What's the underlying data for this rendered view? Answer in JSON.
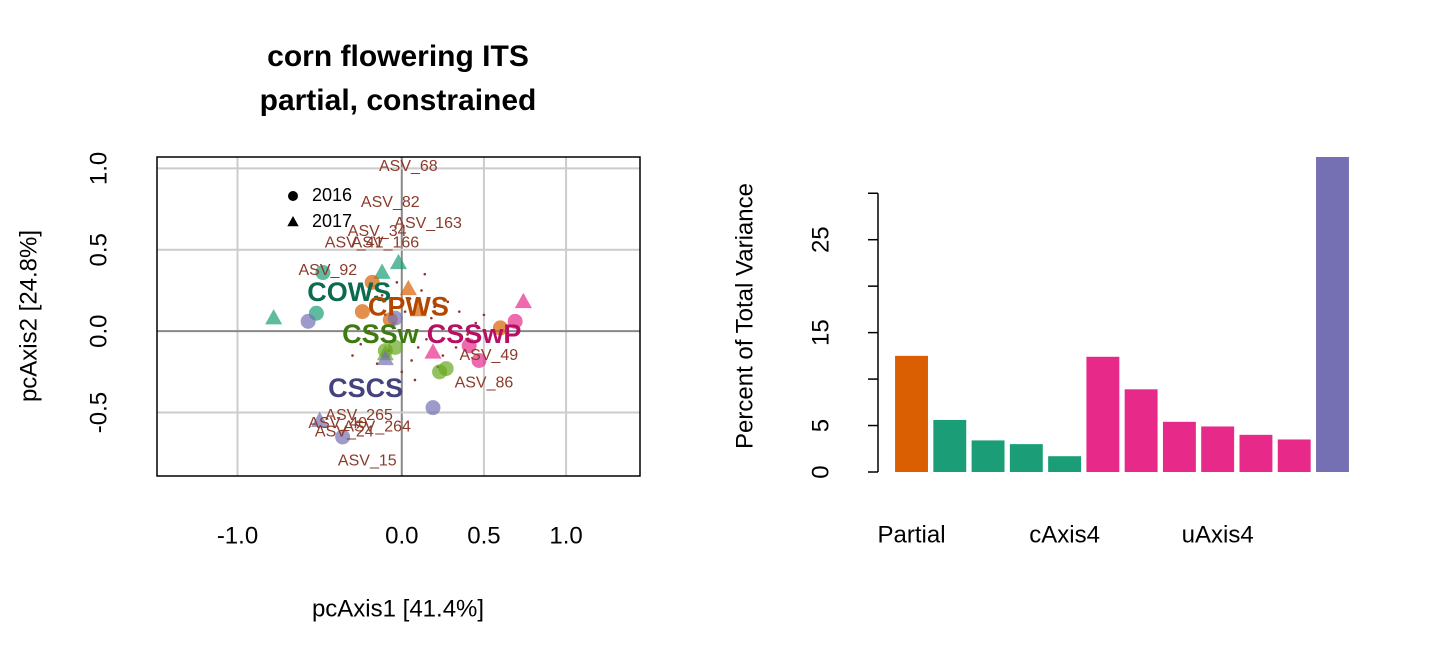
{
  "chart_data": [
    {
      "type": "scatter",
      "title": "corn flowering ITS",
      "subtitle": "partial, constrained",
      "x_label": "pcAxis1 [41.4%]",
      "y_label": "pcAxis2 [24.8%]",
      "xlim": [
        -1.49,
        1.45
      ],
      "ylim": [
        -0.89,
        1.07
      ],
      "xticks": [
        {
          "value": -1,
          "label": "-1.0"
        },
        {
          "value": 0,
          "label": "0.0"
        },
        0.5,
        {
          "value": 1,
          "label": "1.0"
        }
      ],
      "yticks": [
        {
          "value": -0.5,
          "label": "-0.5"
        },
        {
          "value": 0,
          "label": "0.0"
        },
        0.5,
        {
          "value": 1,
          "label": "1.0"
        }
      ],
      "grid": true,
      "legend": [
        {
          "label": "2016",
          "shape": "circle"
        },
        {
          "label": "2017",
          "shape": "triangle"
        }
      ],
      "series": [
        {
          "name": "COWS",
          "color": "#1b9e77",
          "label_color": "#0a6b4e",
          "label_x": -0.32,
          "label_y": 0.23,
          "x": [
            -0.48,
            -0.52,
            -0.78,
            -0.02,
            -0.12
          ],
          "y": [
            0.36,
            0.11,
            0.08,
            0.42,
            0.36
          ],
          "shape": [
            "circle",
            "circle",
            "triangle",
            "triangle",
            "triangle"
          ]
        },
        {
          "name": "CPWS",
          "color": "#d95f02",
          "label_color": "#b34700",
          "label_x": 0.04,
          "label_y": 0.14,
          "x": [
            -0.18,
            -0.24,
            -0.07,
            0.6,
            0.04,
            0.1
          ],
          "y": [
            0.3,
            0.12,
            0.07,
            0.02,
            0.26,
            0.13
          ],
          "shape": [
            "circle",
            "circle",
            "circle",
            "circle",
            "triangle",
            "triangle"
          ]
        },
        {
          "name": "CSSw",
          "color": "#66a61e",
          "label_color": "#3d7a10",
          "label_x": -0.13,
          "label_y": -0.03,
          "x": [
            0.27,
            0.23,
            -0.04,
            -0.1,
            -0.1
          ],
          "y": [
            -0.23,
            -0.25,
            -0.1,
            -0.12,
            -0.14
          ],
          "shape": [
            "circle",
            "circle",
            "circle",
            "circle",
            "triangle"
          ]
        },
        {
          "name": "CSSwP",
          "color": "#e7298a",
          "label_color": "#b80f65",
          "label_x": 0.44,
          "label_y": -0.03,
          "x": [
            0.69,
            0.47,
            0.41,
            0.74,
            0.19
          ],
          "y": [
            0.06,
            -0.18,
            -0.09,
            0.18,
            -0.13
          ],
          "shape": [
            "circle",
            "circle",
            "circle",
            "triangle",
            "triangle"
          ]
        },
        {
          "name": "CSCS",
          "color": "#7570b3",
          "label_color": "#45437d",
          "label_x": -0.22,
          "label_y": -0.36,
          "x": [
            -0.57,
            0.19,
            -0.36,
            -0.04,
            -0.5,
            -0.1
          ],
          "y": [
            0.06,
            -0.47,
            -0.65,
            0.08,
            -0.55,
            -0.17
          ],
          "shape": [
            "circle",
            "circle",
            "circle",
            "circle",
            "triangle",
            "triangle"
          ]
        }
      ],
      "species_points": {
        "color": "#8b3a2a",
        "x": [
          -0.05,
          0.1,
          0.2,
          -0.15,
          0.3,
          0.05,
          -0.1,
          0.15,
          0.25,
          -0.2,
          0.35,
          0.0,
          0.12,
          -0.08,
          0.4,
          0.18,
          -0.25,
          0.08,
          0.28,
          -0.03,
          0.22,
          0.5,
          -0.12,
          0.02,
          0.33,
          0.45,
          -0.3,
          0.14,
          0.06,
          -0.18
        ],
        "y": [
          0.05,
          -0.1,
          0.15,
          -0.2,
          0.02,
          0.2,
          0.1,
          -0.05,
          -0.15,
          0.0,
          0.12,
          -0.25,
          0.25,
          -0.12,
          -0.02,
          0.08,
          -0.08,
          -0.3,
          0.18,
          0.3,
          -0.22,
          0.1,
          0.22,
          0.12,
          -0.1,
          0.05,
          -0.15,
          0.35,
          -0.18,
          0.28
        ]
      },
      "species_labels": {
        "color": "#8b3a2a",
        "names": [
          "ASV_68",
          "ASV_82",
          "ASV_163",
          "ASV_34",
          "ASV_41",
          "ASV_166",
          "ASV_92",
          "ASV_49",
          "ASV_86",
          "ASV_265",
          "ASV_40",
          "ASV_264",
          "ASV_24",
          "ASV_15"
        ],
        "x": [
          0.04,
          -0.07,
          0.16,
          -0.15,
          -0.29,
          -0.1,
          -0.45,
          0.53,
          0.5,
          -0.26,
          -0.39,
          -0.15,
          -0.35,
          -0.21
        ],
        "y": [
          1.01,
          0.79,
          0.66,
          0.61,
          0.54,
          0.54,
          0.37,
          -0.15,
          -0.32,
          -0.52,
          -0.57,
          -0.59,
          -0.62,
          -0.8
        ]
      }
    },
    {
      "type": "bar",
      "y_label": "Percent of Total Variance",
      "categories": [
        "Partial",
        null,
        null,
        null,
        "cAxis4",
        null,
        null,
        null,
        "uAxis4",
        null,
        null,
        null
      ],
      "values": [
        12.5,
        5.6,
        3.4,
        3.0,
        1.7,
        12.4,
        8.9,
        5.4,
        4.9,
        4.0,
        3.5,
        33.9
      ],
      "colors": [
        "#d95f02",
        "#1b9e77",
        "#1b9e77",
        "#1b9e77",
        "#1b9e77",
        "#e7298a",
        "#e7298a",
        "#e7298a",
        "#e7298a",
        "#e7298a",
        "#e7298a",
        "#7570b3"
      ],
      "ylim": [
        0,
        33.9
      ],
      "yticks": [
        0,
        5,
        15,
        25
      ],
      "yminorticks": [
        10,
        20,
        30
      ]
    }
  ]
}
